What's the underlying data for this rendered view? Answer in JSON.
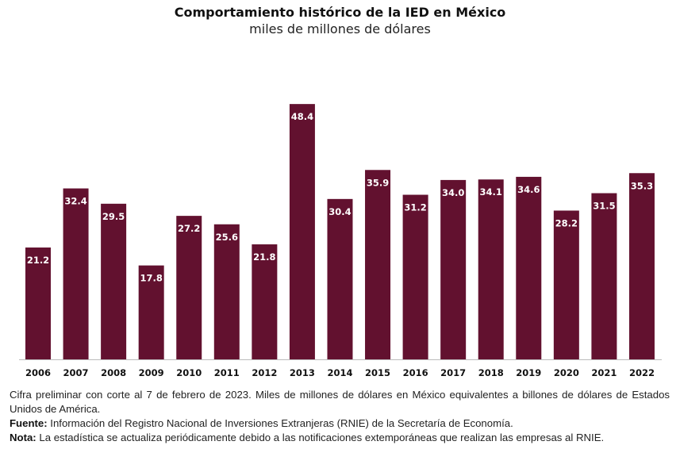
{
  "chart_data": {
    "type": "bar",
    "title": "Comportamiento histórico de la IED en México",
    "subtitle": "miles de millones de dólares",
    "categories": [
      "2006",
      "2007",
      "2008",
      "2009",
      "2010",
      "2011",
      "2012",
      "2013",
      "2014",
      "2015",
      "2016",
      "2017",
      "2018",
      "2019",
      "2020",
      "2021",
      "2022"
    ],
    "values": [
      21.2,
      32.4,
      29.5,
      17.8,
      27.2,
      25.6,
      21.8,
      48.4,
      30.4,
      35.9,
      31.2,
      34.0,
      34.1,
      34.6,
      28.2,
      31.5,
      35.3
    ],
    "data_labels": [
      "21.2",
      "32.4",
      "29.5",
      "17.8",
      "27.2",
      "25.6",
      "21.8",
      "48.4",
      "30.4",
      "35.9",
      "31.2",
      "34.0",
      "34.1",
      "34.6",
      "28.2",
      "31.5",
      "35.3"
    ],
    "bar_color": "#62112f",
    "ylim": [
      0,
      50
    ],
    "grid": false,
    "legend": "none"
  },
  "notes": {
    "line1": "Cifra preliminar con corte al 7 de febrero de 2023. Miles de millones de dólares en México equivalentes a billones de dólares de Estados Unidos de América.",
    "source_label": "Fuente:",
    "source_text": " Información del Registro Nacional de Inversiones Extranjeras (RNIE) de la Secretaría de Economía.",
    "note_label": "Nota:",
    "note_text": " La estadística se actualiza periódicamente debido a las notificaciones extemporáneas que realizan las empresas al RNIE."
  }
}
